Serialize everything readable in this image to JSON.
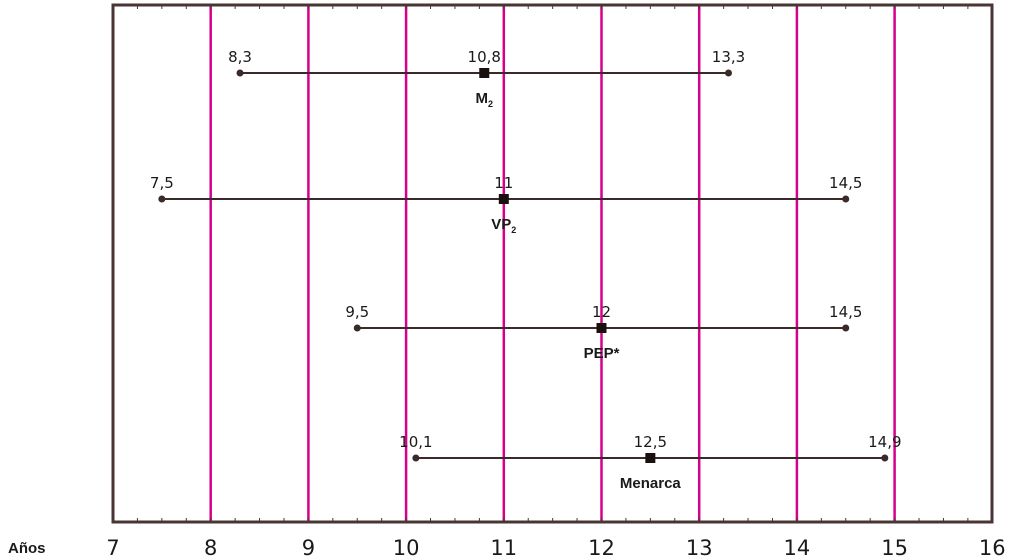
{
  "chart_data": {
    "type": "range",
    "axis_label": "Años",
    "x_ticks": [
      "7",
      "8",
      "9",
      "10",
      "11",
      "12",
      "13",
      "14",
      "15",
      "16"
    ],
    "xlim": [
      7,
      16
    ],
    "grid": "vertical lines at each year",
    "colors": {
      "grid": "#d6008a",
      "frame": "#4a3535",
      "ranges": "#3a2a2a"
    },
    "series": [
      {
        "label": "M",
        "subscript": "2",
        "min": 8.3,
        "median": 10.8,
        "max": 13.3,
        "min_label": "8,3",
        "median_label": "10,8",
        "max_label": "13,3"
      },
      {
        "label": "VP",
        "subscript": "2",
        "min": 7.5,
        "median": 11,
        "max": 14.5,
        "min_label": "7,5",
        "median_label": "11",
        "max_label": "14,5"
      },
      {
        "label": "PEP*",
        "subscript": "",
        "min": 9.5,
        "median": 12,
        "max": 14.5,
        "min_label": "9,5",
        "median_label": "12",
        "max_label": "14,5"
      },
      {
        "label": "Menarca",
        "subscript": "",
        "min": 10.1,
        "median": 12.5,
        "max": 14.9,
        "min_label": "10,1",
        "median_label": "12,5",
        "max_label": "14,9"
      }
    ]
  }
}
